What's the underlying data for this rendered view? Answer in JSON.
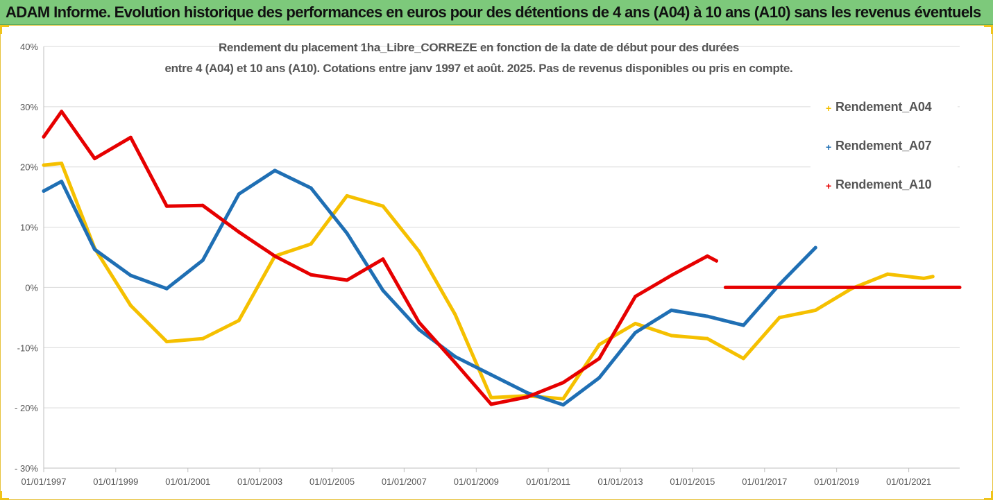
{
  "banner": {
    "title": "ADAM Informe. Evolution historique des performances en euros pour des détentions de 4 ans (A04) à 10 ans (A10) sans les revenus éventuels"
  },
  "chart_data": {
    "type": "line",
    "title_line1": "Rendement du placement 1ha_Libre_CORREZE en fonction de la date de début pour des durées",
    "title_line2": "entre 4 (A04) et 10 ans (A10).  Cotations entre janv 1997 et août. 2025. Pas de revenus disponibles ou pris en compte.",
    "ylim": [
      -30,
      40
    ],
    "yticks": [
      40,
      30,
      20,
      10,
      0,
      -10,
      -20,
      -30
    ],
    "ytick_labels": [
      "40%",
      "30%",
      "20%",
      "10%",
      "0%",
      "-10%",
      "- 20%",
      "- 30%"
    ],
    "xlim": [
      "1997-01-01",
      "2022-06-01"
    ],
    "xtick_labels": [
      "01/01/1997",
      "01/01/1999",
      "01/01/2001",
      "01/01/2003",
      "01/01/2005",
      "01/01/2007",
      "01/01/2009",
      "01/01/2011",
      "01/01/2013",
      "01/01/2015",
      "01/01/2017",
      "01/01/2019",
      "01/01/2021"
    ],
    "xtick_dates": [
      "1997-01-01",
      "1999-01-01",
      "2001-01-01",
      "2003-01-01",
      "2005-01-01",
      "2007-01-01",
      "2009-01-01",
      "2011-01-01",
      "2013-01-01",
      "2015-01-01",
      "2017-01-01",
      "2019-01-01",
      "2021-01-01"
    ],
    "grid": "horizontal",
    "legend_position": "right",
    "series": [
      {
        "name": "Rendement_A04",
        "color": "#f5c000",
        "points": [
          [
            "1997-01-01",
            20.3
          ],
          [
            "1997-07-01",
            20.6
          ],
          [
            "1998-06-01",
            6.5
          ],
          [
            "1999-06-01",
            -3.0
          ],
          [
            "2000-06-01",
            -9.0
          ],
          [
            "2001-06-01",
            -8.5
          ],
          [
            "2002-06-01",
            -5.5
          ],
          [
            "2003-06-01",
            5.2
          ],
          [
            "2004-06-01",
            7.2
          ],
          [
            "2005-06-01",
            15.2
          ],
          [
            "2006-06-01",
            13.5
          ],
          [
            "2007-06-01",
            6.0
          ],
          [
            "2008-06-01",
            -4.5
          ],
          [
            "2009-06-01",
            -18.3
          ],
          [
            "2010-06-01",
            -18.0
          ],
          [
            "2011-06-01",
            -18.5
          ],
          [
            "2012-06-01",
            -9.5
          ],
          [
            "2013-06-01",
            -6.0
          ],
          [
            "2014-06-01",
            -8.0
          ],
          [
            "2015-06-01",
            -8.5
          ],
          [
            "2016-06-01",
            -11.8
          ],
          [
            "2017-06-01",
            -5.0
          ],
          [
            "2018-06-01",
            -3.8
          ],
          [
            "2019-06-01",
            -0.2
          ],
          [
            "2020-06-01",
            2.2
          ],
          [
            "2021-06-01",
            1.5
          ],
          [
            "2021-09-01",
            1.8
          ]
        ]
      },
      {
        "name": "Rendement_A07",
        "color": "#1f6fb4",
        "points": [
          [
            "1997-01-01",
            16.0
          ],
          [
            "1997-07-01",
            17.6
          ],
          [
            "1998-06-01",
            6.3
          ],
          [
            "1999-06-01",
            2.0
          ],
          [
            "2000-06-01",
            -0.2
          ],
          [
            "2001-06-01",
            4.5
          ],
          [
            "2002-06-01",
            15.5
          ],
          [
            "2003-06-01",
            19.4
          ],
          [
            "2004-06-01",
            16.5
          ],
          [
            "2005-06-01",
            9.0
          ],
          [
            "2006-06-01",
            -0.5
          ],
          [
            "2007-06-01",
            -7.0
          ],
          [
            "2008-06-01",
            -11.5
          ],
          [
            "2009-06-01",
            -14.5
          ],
          [
            "2010-06-01",
            -17.5
          ],
          [
            "2011-06-01",
            -19.5
          ],
          [
            "2012-06-01",
            -15.0
          ],
          [
            "2013-06-01",
            -7.5
          ],
          [
            "2014-06-01",
            -3.8
          ],
          [
            "2015-06-01",
            -4.8
          ],
          [
            "2016-06-01",
            -6.3
          ],
          [
            "2017-06-01",
            0.5
          ],
          [
            "2018-06-01",
            6.6
          ]
        ]
      },
      {
        "name": "Rendement_A10",
        "color": "#e60000",
        "points": [
          [
            "1997-01-01",
            25.0
          ],
          [
            "1997-07-01",
            29.2
          ],
          [
            "1998-06-01",
            21.4
          ],
          [
            "1999-06-01",
            24.9
          ],
          [
            "2000-06-01",
            13.5
          ],
          [
            "2001-06-01",
            13.6
          ],
          [
            "2002-06-01",
            9.2
          ],
          [
            "2003-06-01",
            5.2
          ],
          [
            "2004-06-01",
            2.1
          ],
          [
            "2005-06-01",
            1.2
          ],
          [
            "2006-06-01",
            4.7
          ],
          [
            "2007-06-01",
            -5.8
          ],
          [
            "2008-06-01",
            -12.5
          ],
          [
            "2009-06-01",
            -19.4
          ],
          [
            "2010-06-01",
            -18.2
          ],
          [
            "2011-06-01",
            -15.8
          ],
          [
            "2012-06-01",
            -11.8
          ],
          [
            "2013-06-01",
            -1.5
          ],
          [
            "2014-06-01",
            2.0
          ],
          [
            "2015-06-01",
            5.2
          ],
          [
            "2015-09-01",
            4.4
          ]
        ],
        "flat_segment": {
          "start": "2015-12-01",
          "end": "2022-06-01",
          "value": 0
        }
      }
    ]
  }
}
